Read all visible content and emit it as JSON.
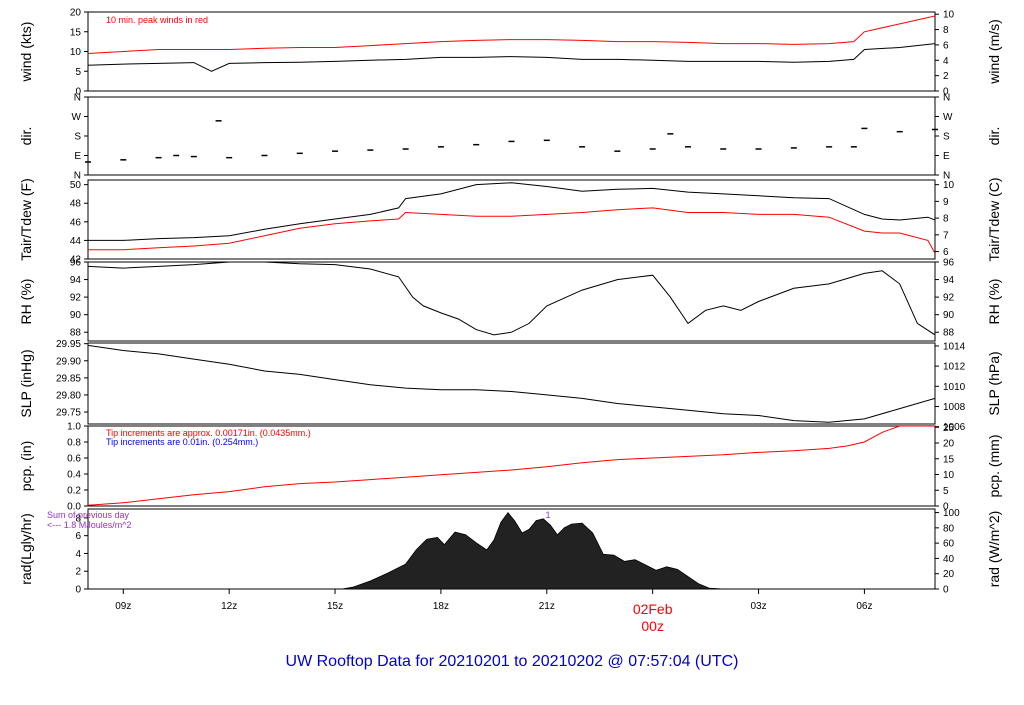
{
  "footer": {
    "title": "UW Rooftop Data for 20210201  to  20210202 @ 07:57:04  (UTC)",
    "color": "#0000cc"
  },
  "colors": {
    "line": "#000000",
    "red": "#ff0000",
    "blue": "#0000ff",
    "purple": "#9933cc"
  },
  "x_axis": {
    "ticks": [
      {
        "hour": 9,
        "label": "09z"
      },
      {
        "hour": 12,
        "label": "12z"
      },
      {
        "hour": 15,
        "label": "15z"
      },
      {
        "hour": 18,
        "label": "18z"
      },
      {
        "hour": 21,
        "label": "21z"
      },
      {
        "hour": 24,
        "label": "02Feb"
      },
      {
        "hour": 27,
        "label": "03z"
      },
      {
        "hour": 30,
        "label": "06z"
      }
    ],
    "date_label": "02Feb",
    "date_sub": "00z",
    "range_hours": [
      8.0,
      32.0
    ]
  },
  "chart_data": [
    {
      "id": "wind",
      "type": "line",
      "ylabel_left": "wind (kts)",
      "ylabel_right": "wind (m/s)",
      "ylim": [
        0,
        20
      ],
      "left_ticks": [
        0,
        5,
        10,
        15,
        20
      ],
      "right_ticks": [
        0,
        2,
        4,
        6,
        8,
        10
      ],
      "right_scale": 0.5144,
      "annotation": "10 min. peak winds in red",
      "series": [
        {
          "color": "#000000",
          "x": [
            8.0,
            9.0,
            10.0,
            11.0,
            11.5,
            12.0,
            13.0,
            14.0,
            15.0,
            16.0,
            17.0,
            18.0,
            19.0,
            20.0,
            21.0,
            22.0,
            23.0,
            24.0,
            25.0,
            26.0,
            27.0,
            28.0,
            29.0,
            29.7,
            30.0,
            31.0,
            32.0
          ],
          "y": [
            6.5,
            6.8,
            7.0,
            7.2,
            5.0,
            7.0,
            7.2,
            7.3,
            7.5,
            7.8,
            8.0,
            8.5,
            8.5,
            8.7,
            8.5,
            8.0,
            8.0,
            7.8,
            7.5,
            7.5,
            7.5,
            7.3,
            7.5,
            8.0,
            10.5,
            11.0,
            12.0
          ]
        },
        {
          "color": "#ff0000",
          "x": [
            8.0,
            9.0,
            10.0,
            11.0,
            12.0,
            13.0,
            14.0,
            15.0,
            16.0,
            17.0,
            18.0,
            19.0,
            20.0,
            21.0,
            22.0,
            23.0,
            24.0,
            25.0,
            26.0,
            27.0,
            28.0,
            29.0,
            29.7,
            30.0,
            31.0,
            32.0
          ],
          "y": [
            9.5,
            10.0,
            10.5,
            10.5,
            10.5,
            10.8,
            11.0,
            11.0,
            11.5,
            12.0,
            12.5,
            12.8,
            13.0,
            13.0,
            12.8,
            12.5,
            12.5,
            12.3,
            12.0,
            12.0,
            11.8,
            12.0,
            12.5,
            15.0,
            17.0,
            19.0
          ]
        }
      ]
    },
    {
      "id": "dir",
      "type": "scatter",
      "ylabel_left": "dir.",
      "ylabel_right": "dir.",
      "ylim": [
        0,
        360
      ],
      "tick_labels": [
        "N",
        "E",
        "S",
        "W",
        "N"
      ],
      "tick_values": [
        0,
        90,
        180,
        270,
        360
      ],
      "series": [
        {
          "color": "#000000",
          "x": [
            8.0,
            9.0,
            10.0,
            10.5,
            11.0,
            11.7,
            12.0,
            13.0,
            14.0,
            15.0,
            16.0,
            17.0,
            18.0,
            19.0,
            20.0,
            21.0,
            22.0,
            23.0,
            24.0,
            24.5,
            25.0,
            26.0,
            27.0,
            28.0,
            29.0,
            29.7,
            30.0,
            31.0,
            32.0
          ],
          "y": [
            60,
            70,
            80,
            90,
            85,
            250,
            80,
            90,
            100,
            110,
            115,
            120,
            130,
            140,
            155,
            160,
            130,
            110,
            120,
            190,
            130,
            120,
            120,
            125,
            130,
            130,
            215,
            200,
            210
          ]
        }
      ]
    },
    {
      "id": "temp",
      "type": "line",
      "ylabel_left": "Tair/Tdew (F)",
      "ylabel_right": "Tair/Tdew (C)",
      "ylim": [
        42,
        50.5
      ],
      "left_ticks": [
        42,
        44,
        46,
        48,
        50
      ],
      "right_ticks": [
        6,
        7,
        8,
        9,
        10
      ],
      "series": [
        {
          "name": "Tair",
          "color": "#000000",
          "x": [
            8.0,
            9.0,
            10.0,
            11.0,
            12.0,
            13.0,
            14.0,
            15.0,
            16.0,
            16.8,
            17.0,
            18.0,
            19.0,
            20.0,
            21.0,
            22.0,
            23.0,
            24.0,
            25.0,
            26.0,
            27.0,
            28.0,
            29.0,
            30.0,
            30.5,
            31.0,
            31.8,
            32.0
          ],
          "y": [
            44.0,
            44.0,
            44.2,
            44.3,
            44.5,
            45.2,
            45.8,
            46.3,
            46.8,
            47.5,
            48.5,
            49.0,
            50.0,
            50.2,
            49.8,
            49.3,
            49.5,
            49.6,
            49.2,
            49.0,
            48.8,
            48.6,
            48.5,
            46.8,
            46.3,
            46.2,
            46.5,
            46.2
          ]
        },
        {
          "name": "Tdew",
          "color": "#ff0000",
          "x": [
            8.0,
            9.0,
            10.0,
            11.0,
            12.0,
            13.0,
            14.0,
            15.0,
            16.0,
            16.8,
            17.0,
            18.0,
            19.0,
            20.0,
            21.0,
            22.0,
            23.0,
            24.0,
            25.0,
            26.0,
            27.0,
            28.0,
            29.0,
            30.0,
            30.5,
            31.0,
            31.8,
            32.0
          ],
          "y": [
            43.0,
            43.0,
            43.2,
            43.4,
            43.7,
            44.5,
            45.3,
            45.8,
            46.1,
            46.3,
            47.0,
            46.8,
            46.6,
            46.6,
            46.8,
            47.0,
            47.3,
            47.5,
            47.0,
            47.0,
            46.8,
            46.8,
            46.5,
            45.0,
            44.8,
            44.8,
            44.0,
            42.6
          ]
        }
      ]
    },
    {
      "id": "rh",
      "type": "line",
      "ylabel_left": "RH (%)",
      "ylabel_right": "RH (%)",
      "ylim": [
        87,
        96
      ],
      "left_ticks": [
        88,
        90,
        92,
        94,
        96
      ],
      "right_ticks": [
        88,
        90,
        92,
        94,
        96
      ],
      "series": [
        {
          "color": "#000000",
          "x": [
            8.0,
            9.0,
            10.0,
            11.0,
            12.0,
            13.0,
            14.0,
            15.0,
            16.0,
            16.8,
            17.2,
            17.5,
            18.0,
            18.5,
            19.0,
            19.5,
            20.0,
            20.5,
            21.0,
            22.0,
            23.0,
            24.0,
            24.5,
            25.0,
            25.5,
            26.0,
            26.5,
            27.0,
            28.0,
            29.0,
            30.0,
            30.5,
            31.0,
            31.5,
            32.0
          ],
          "y": [
            95.5,
            95.3,
            95.5,
            95.7,
            96.0,
            96.0,
            95.8,
            95.7,
            95.2,
            94.3,
            92.0,
            91.0,
            90.2,
            89.5,
            88.3,
            87.7,
            88.0,
            89.0,
            91.0,
            92.8,
            94.0,
            94.5,
            92.0,
            89.0,
            90.5,
            91.0,
            90.5,
            91.5,
            93.0,
            93.5,
            94.7,
            95.0,
            93.5,
            89.0,
            87.7
          ]
        }
      ]
    },
    {
      "id": "slp",
      "type": "line",
      "ylabel_left": "SLP (inHg)",
      "ylabel_right": "SLP (hPa)",
      "ylim": [
        29.715,
        29.952
      ],
      "left_ticks": [
        29.75,
        29.8,
        29.85,
        29.9,
        29.95
      ],
      "left_tick_labels": [
        "29.75",
        "29.80",
        "29.85",
        "29.90",
        "29.95"
      ],
      "right_ticks": [
        1006,
        1008,
        1010,
        1012,
        1014
      ],
      "series": [
        {
          "color": "#000000",
          "x": [
            8.0,
            9.0,
            10.0,
            11.0,
            12.0,
            13.0,
            14.0,
            15.0,
            16.0,
            17.0,
            18.0,
            19.0,
            20.0,
            21.0,
            22.0,
            23.0,
            24.0,
            25.0,
            26.0,
            27.0,
            28.0,
            29.0,
            30.0,
            31.0,
            32.0
          ],
          "y": [
            29.945,
            29.93,
            29.92,
            29.905,
            29.89,
            29.87,
            29.86,
            29.845,
            29.83,
            29.82,
            29.815,
            29.815,
            29.81,
            29.8,
            29.79,
            29.775,
            29.765,
            29.755,
            29.745,
            29.74,
            29.725,
            29.72,
            29.73,
            29.76,
            29.79
          ]
        }
      ]
    },
    {
      "id": "pcp",
      "type": "line",
      "ylabel_left": "pcp. (in)",
      "ylabel_right": "pcp. (mm)",
      "ylim": [
        0,
        1.0
      ],
      "left_ticks": [
        0.0,
        0.2,
        0.4,
        0.6,
        0.8,
        1.0
      ],
      "left_tick_labels": [
        "0.0",
        "0.2",
        "0.4",
        "0.6",
        "0.8",
        "1.0"
      ],
      "right_ticks": [
        0,
        5,
        10,
        15,
        20,
        25
      ],
      "annotations": [
        {
          "text": "Tip increments are approx. 0.00171in. (0.0435mm.)",
          "color": "#ff0000"
        },
        {
          "text": "Tip increments are 0.01in. (0.254mm.)",
          "color": "#0000ff"
        }
      ],
      "series": [
        {
          "color": "#ff0000",
          "x": [
            8.0,
            9.0,
            10.0,
            11.0,
            12.0,
            13.0,
            14.0,
            15.0,
            16.0,
            17.0,
            18.0,
            19.0,
            20.0,
            21.0,
            22.0,
            23.0,
            24.0,
            25.0,
            26.0,
            27.0,
            28.0,
            29.0,
            29.5,
            30.0,
            30.5,
            31.0,
            32.0
          ],
          "y": [
            0.01,
            0.04,
            0.09,
            0.14,
            0.18,
            0.24,
            0.28,
            0.3,
            0.33,
            0.36,
            0.39,
            0.42,
            0.45,
            0.49,
            0.54,
            0.58,
            0.6,
            0.62,
            0.64,
            0.67,
            0.69,
            0.72,
            0.75,
            0.8,
            0.92,
            1.0,
            1.0
          ]
        }
      ]
    },
    {
      "id": "rad",
      "type": "area",
      "ylabel_left": "rad(Lgly/hr)",
      "ylabel_right": "rad (W/m^2)",
      "ylim": [
        0,
        9
      ],
      "left_ticks": [
        0,
        2,
        4,
        6,
        8
      ],
      "right_ticks": [
        0,
        20,
        40,
        60,
        80,
        100
      ],
      "annotation_lines": [
        "Sum of previous day",
        "<--- 1.8 MJoules/m^2"
      ],
      "marker": "1",
      "series": [
        {
          "color": "#000000",
          "x": [
            15.2,
            15.5,
            16.0,
            16.5,
            17.0,
            17.3,
            17.6,
            17.9,
            18.1,
            18.4,
            18.7,
            19.0,
            19.3,
            19.5,
            19.7,
            19.9,
            20.1,
            20.3,
            20.5,
            20.7,
            20.9,
            21.1,
            21.3,
            21.5,
            21.7,
            22.0,
            22.3,
            22.6,
            22.9,
            23.2,
            23.5,
            23.8,
            24.1,
            24.4,
            24.7,
            25.0,
            25.3,
            25.6,
            26.0
          ],
          "y": [
            0.0,
            0.2,
            0.9,
            1.8,
            2.8,
            4.4,
            5.6,
            5.8,
            5.0,
            6.4,
            6.1,
            5.2,
            4.4,
            5.5,
            7.5,
            8.6,
            7.6,
            6.3,
            6.7,
            7.7,
            7.9,
            7.2,
            6.1,
            6.9,
            7.3,
            7.4,
            6.3,
            3.9,
            3.8,
            3.1,
            3.3,
            2.7,
            2.1,
            2.5,
            2.2,
            1.4,
            0.6,
            0.1,
            0.0
          ]
        }
      ]
    }
  ]
}
